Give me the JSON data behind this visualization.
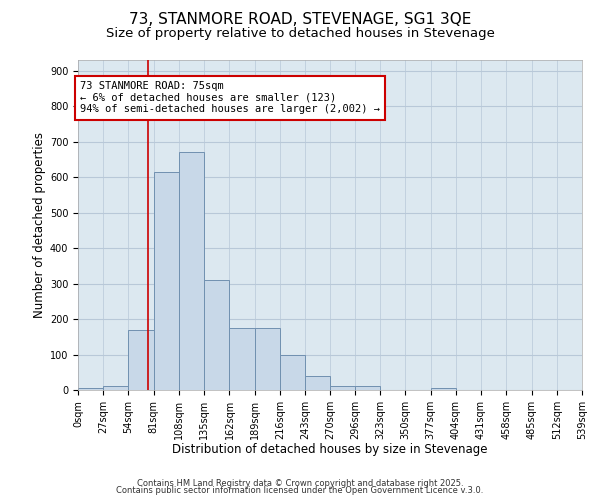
{
  "title": "73, STANMORE ROAD, STEVENAGE, SG1 3QE",
  "subtitle": "Size of property relative to detached houses in Stevenage",
  "xlabel": "Distribution of detached houses by size in Stevenage",
  "ylabel": "Number of detached properties",
  "bin_edges": [
    0,
    27,
    54,
    81,
    108,
    135,
    162,
    189,
    216,
    243,
    270,
    296,
    323,
    350,
    377,
    404,
    431,
    458,
    485,
    512,
    539
  ],
  "bar_heights": [
    5,
    10,
    170,
    615,
    670,
    310,
    175,
    175,
    100,
    40,
    12,
    10,
    0,
    0,
    5,
    0,
    0,
    0,
    0,
    0
  ],
  "bar_color": "#c8d8e8",
  "bar_edge_color": "#7090b0",
  "property_size": 75,
  "redline_color": "#cc0000",
  "annotation_line1": "73 STANMORE ROAD: 75sqm",
  "annotation_line2": "← 6% of detached houses are smaller (123)",
  "annotation_line3": "94% of semi-detached houses are larger (2,002) →",
  "annotation_box_color": "#ffffff",
  "annotation_box_edge": "#cc0000",
  "ylim": [
    0,
    930
  ],
  "yticks": [
    0,
    100,
    200,
    300,
    400,
    500,
    600,
    700,
    800,
    900
  ],
  "xtick_labels": [
    "0sqm",
    "27sqm",
    "54sqm",
    "81sqm",
    "108sqm",
    "135sqm",
    "162sqm",
    "189sqm",
    "216sqm",
    "243sqm",
    "270sqm",
    "296sqm",
    "323sqm",
    "350sqm",
    "377sqm",
    "404sqm",
    "431sqm",
    "458sqm",
    "485sqm",
    "512sqm",
    "539sqm"
  ],
  "footer1": "Contains HM Land Registry data © Crown copyright and database right 2025.",
  "footer2": "Contains public sector information licensed under the Open Government Licence v.3.0.",
  "bg_color": "#ffffff",
  "ax_bg_color": "#dce8f0",
  "grid_color": "#b8c8d8",
  "title_fontsize": 11,
  "subtitle_fontsize": 9.5,
  "label_fontsize": 8.5,
  "tick_fontsize": 7,
  "annotation_fontsize": 7.5,
  "footer_fontsize": 6
}
